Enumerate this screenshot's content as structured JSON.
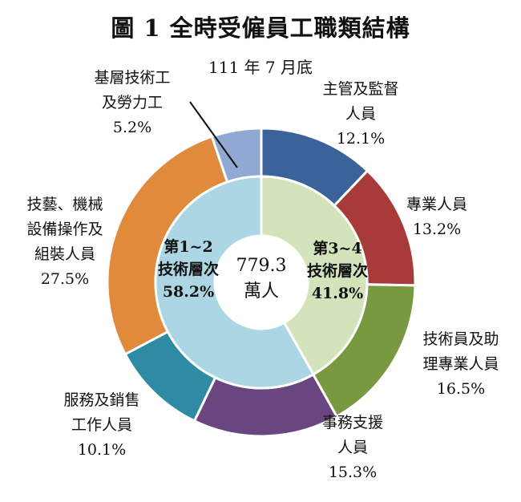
{
  "title": "圖 1 全時受僱員工職類結構",
  "subtitle": "111 年 7 月底",
  "chart_data": {
    "type": "pie",
    "center": {
      "value": "779.3",
      "unit": "萬人"
    },
    "outer": [
      {
        "label": [
          "主管及監督",
          "人員"
        ],
        "pct": "12.1%",
        "value": 12.1,
        "color": "#3b639a"
      },
      {
        "label": [
          "專業人員"
        ],
        "pct": "13.2%",
        "value": 13.2,
        "color": "#a83b38"
      },
      {
        "label": [
          "技術員及助",
          "理專業人員"
        ],
        "pct": "16.5%",
        "value": 16.5,
        "color": "#78993f"
      },
      {
        "label": [
          "事務支援",
          "人員"
        ],
        "pct": "15.3%",
        "value": 15.3,
        "color": "#694680"
      },
      {
        "label": [
          "服務及銷售",
          "工作人員"
        ],
        "pct": "10.1%",
        "value": 10.1,
        "color": "#2e8ba3"
      },
      {
        "label": [
          "技藝、機械",
          "設備操作及",
          "組裝人員"
        ],
        "pct": "27.5%",
        "value": 27.5,
        "color": "#e08a3b"
      },
      {
        "label": [
          "基層技術工",
          "及勞力工"
        ],
        "pct": "5.2%",
        "value": 5.2,
        "color": "#90a8d2"
      }
    ],
    "inner": [
      {
        "label": [
          "第3~4",
          "技術層次"
        ],
        "pct": "41.8%",
        "value": 41.8,
        "color": "#d3e3bc"
      },
      {
        "label": [
          "第1~2",
          "技術層次"
        ],
        "pct": "58.2%",
        "value": 58.2,
        "color": "#acd6e3"
      }
    ]
  }
}
